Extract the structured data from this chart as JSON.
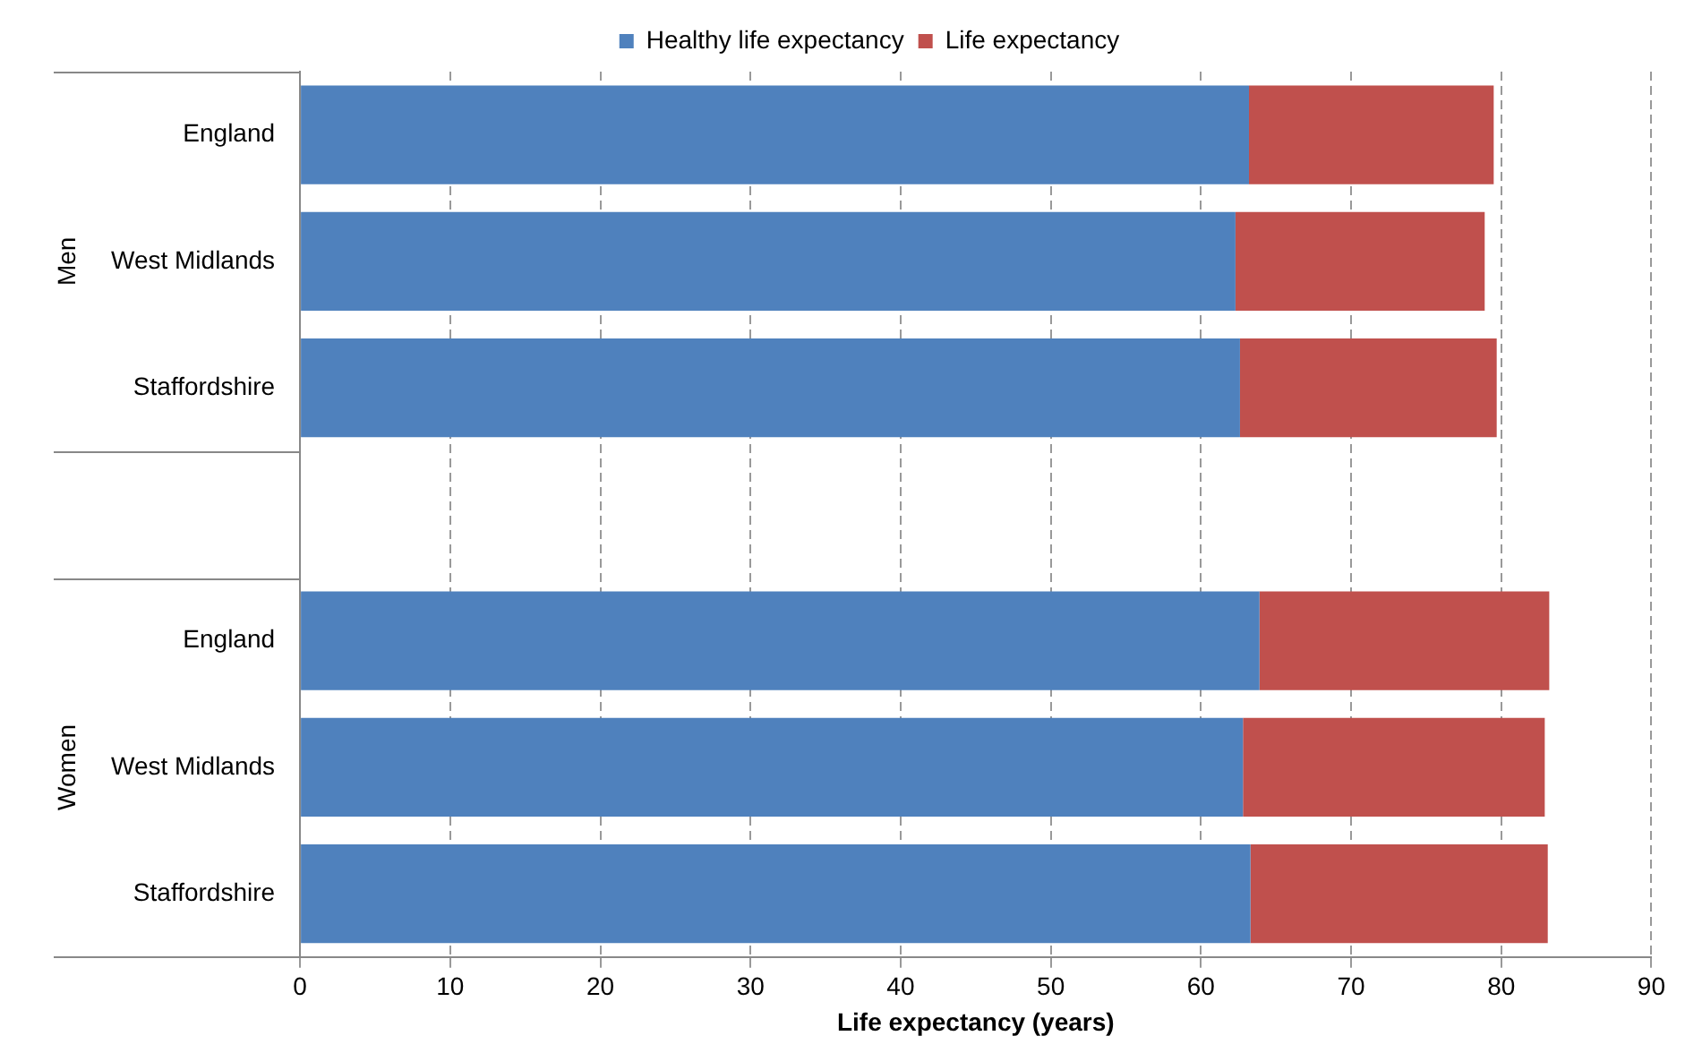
{
  "chart_data": {
    "type": "bar",
    "orientation": "horizontal",
    "stacked": true,
    "categories": [
      "England",
      "West Midlands",
      "Staffordshire",
      null,
      "England",
      "West Midlands",
      "Staffordshire"
    ],
    "series": [
      {
        "name": "Healthy life expectancy",
        "color": "#4f81bd",
        "values": [
          63.2,
          62.3,
          62.6,
          null,
          63.9,
          62.8,
          63.3
        ]
      },
      {
        "name": "Life expectancy",
        "color": "#c0504d",
        "values": [
          16.3,
          16.6,
          17.1,
          null,
          19.3,
          20.1,
          19.8
        ]
      }
    ],
    "xlabel": "Life expectancy (years)",
    "xlim": [
      0,
      90
    ],
    "xticks": [
      0,
      10,
      20,
      30,
      40,
      50,
      60,
      70,
      80,
      90
    ],
    "annotations": [
      "Men",
      "Women"
    ],
    "grid": "x",
    "legend": "top"
  }
}
